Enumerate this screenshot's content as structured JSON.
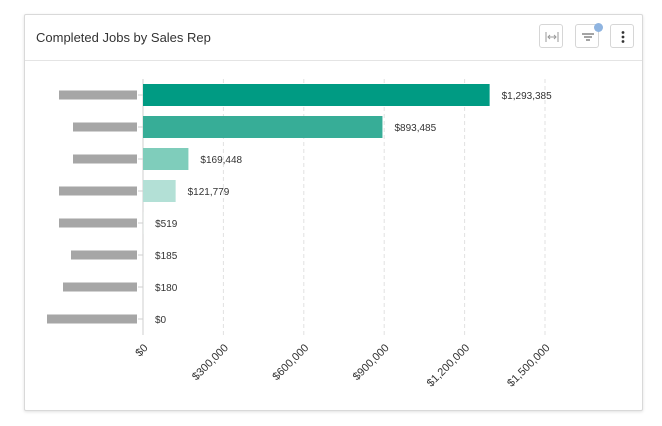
{
  "card": {
    "title": "Completed Jobs by Sales Rep",
    "toolbar": {
      "fit_icon": "fit-width-icon",
      "filter_icon": "filter-icon",
      "more_icon": "more-vertical-icon",
      "filter_badge_color": "#8fb4e0"
    }
  },
  "chart_data": {
    "type": "bar",
    "orientation": "horizontal",
    "title": "Completed Jobs by Sales Rep",
    "categories_redacted": true,
    "values": [
      1293385,
      893485,
      169448,
      121779,
      519,
      185,
      180,
      0
    ],
    "value_labels": [
      "$1,293,385",
      "$893,485",
      "$169,448",
      "$121,779",
      "$519",
      "$185",
      "$180",
      "$0"
    ],
    "bar_colors": [
      "#009b83",
      "#37ad97",
      "#7fcdbb",
      "#b3e0d6",
      "#d6efe9",
      "#d6efe9",
      "#d6efe9",
      "#d6efe9"
    ],
    "xlim": [
      0,
      1500000
    ],
    "xticks": [
      0,
      300000,
      600000,
      900000,
      1200000,
      1500000
    ],
    "xtick_labels": [
      "$0",
      "$300,000",
      "$600,000",
      "$900,000",
      "$1,200,000",
      "$1,500,000"
    ],
    "grid": "vertical-dashed",
    "legend": "none"
  }
}
